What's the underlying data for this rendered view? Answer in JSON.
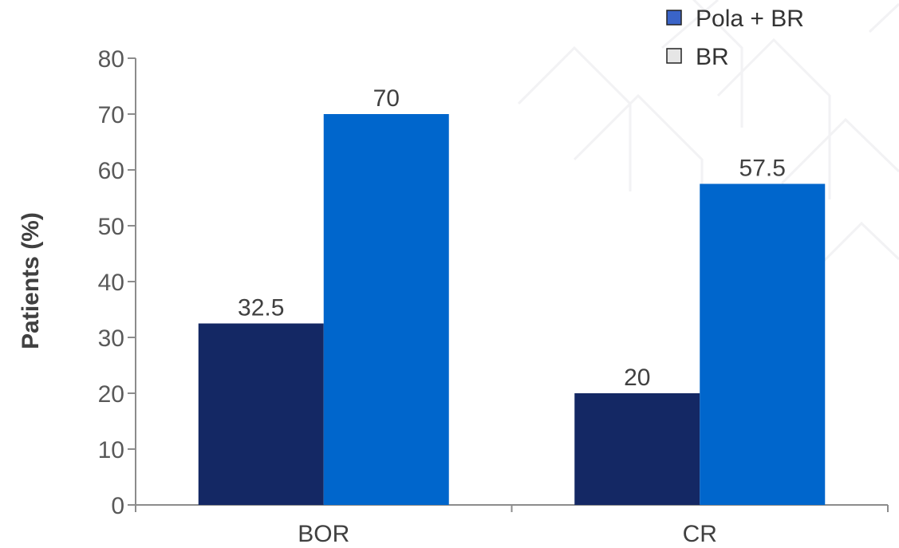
{
  "chart_data": {
    "type": "bar",
    "categories": [
      "BOR",
      "CR"
    ],
    "series": [
      {
        "name": "BR",
        "values": [
          32.5,
          20
        ],
        "color": "#142864"
      },
      {
        "name": "Pola + BR",
        "values": [
          70,
          57.5
        ],
        "color": "#0066CC"
      }
    ],
    "legend_order": [
      "Pola + BR",
      "BR"
    ],
    "legend_swatch_colors": {
      "Pola + BR": "#3A64C8",
      "BR": "#E6E6E6"
    },
    "value_labels": [
      [
        "32.5",
        "20"
      ],
      [
        "70",
        "57.5"
      ]
    ],
    "ylabel": "Patients (%)",
    "xlabel": "",
    "ylim": [
      0,
      80
    ],
    "yticks": [
      0,
      10,
      20,
      30,
      40,
      50,
      60,
      70,
      80
    ],
    "legend_position": "top-right",
    "grid": false
  }
}
